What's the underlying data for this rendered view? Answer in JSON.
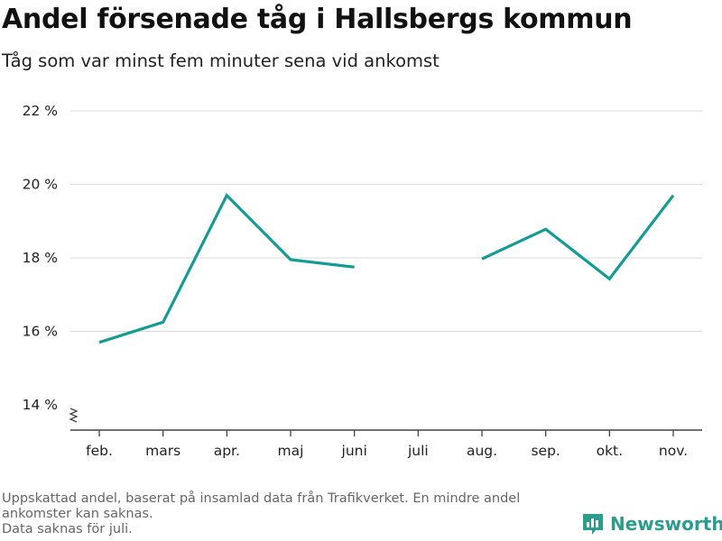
{
  "title": "Andel försenade tåg i Hallsbergs kommun",
  "subtitle": "Tåg som var minst fem minuter sena vid ankomst",
  "footnote": {
    "line1": "Uppskattad andel, baserat på insamlad data från Trafikverket. En mindre andel ankomster kan saknas.",
    "line2": "Data saknas för juli."
  },
  "brand": {
    "name": "Newsworthy",
    "icon": "bar-chart-icon",
    "color": "#2a9d8f"
  },
  "chart_data": {
    "type": "line",
    "categories": [
      "feb.",
      "mars",
      "apr.",
      "maj",
      "juni",
      "juli",
      "aug.",
      "sep.",
      "okt.",
      "nov."
    ],
    "series": [
      {
        "values": [
          15.7,
          16.25,
          19.7,
          17.95,
          17.75,
          null,
          17.97,
          18.78,
          17.43,
          19.7
        ],
        "color": "#149c94"
      }
    ],
    "y_ticks": [
      14,
      16,
      18,
      20,
      22
    ],
    "y_tick_labels": [
      "14 %",
      "16 %",
      "18 %",
      "20 %",
      "22 %"
    ],
    "ylim": [
      14,
      22
    ],
    "axis_break": true,
    "grid": true
  }
}
